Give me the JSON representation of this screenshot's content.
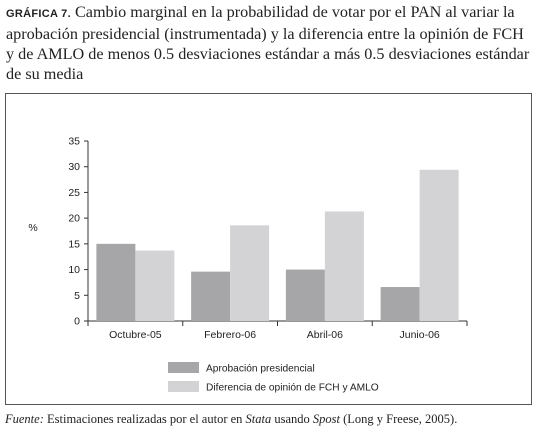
{
  "caption": {
    "label": "GRÁFICA 7.",
    "text": "Cambio marginal en la probabilidad de votar por el PAN al variar la aprobación presidencial (instrumentada) y la diferencia entre la opinión de FCH y de AMLO de menos 0.5 desviaciones estándar a más 0.5 desviaciones estándar de su media"
  },
  "source": {
    "lead": "Fuente:",
    "part1": " Estimaciones realizadas por el autor en ",
    "stata": "Stata",
    "part2": " usando ",
    "spost": "Spost",
    "part3": " (Long y Freese, 2005)."
  },
  "colors": {
    "series1": "#a6a6a8",
    "series2": "#d3d3d5",
    "axis": "#333333"
  },
  "chart_data": {
    "type": "bar",
    "title": "",
    "xlabel": "",
    "ylabel": "%",
    "ylim": [
      0,
      35
    ],
    "yticks": [
      0,
      5,
      10,
      15,
      20,
      25,
      30,
      35
    ],
    "grid": false,
    "legend_position": "bottom",
    "categories": [
      "Octubre-05",
      "Febrero-06",
      "Abril-06",
      "Junio-06"
    ],
    "series": [
      {
        "name": "Aprobación presidencial",
        "values": [
          15.0,
          9.6,
          10.0,
          6.6
        ]
      },
      {
        "name": "Diferencia de opinión de FCH y AMLO",
        "values": [
          13.7,
          18.6,
          21.3,
          29.4
        ]
      }
    ]
  }
}
